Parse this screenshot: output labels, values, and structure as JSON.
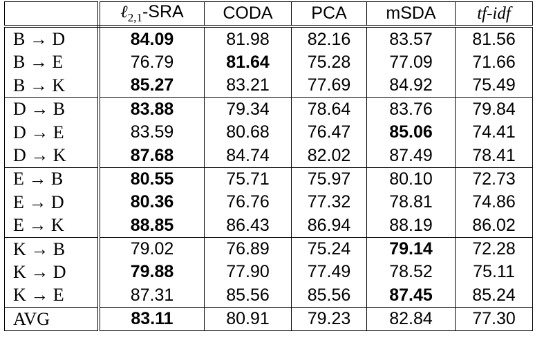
{
  "header": {
    "col1_symbol": "ℓ",
    "col1_sub": "2,1",
    "col1_suffix": "-SRA",
    "col2": "CODA",
    "col3": "PCA",
    "col4": "mSDA",
    "col5": "tf-idf"
  },
  "rows": [
    {
      "label": "B → D",
      "v": [
        "84.09",
        "81.98",
        "82.16",
        "83.57",
        "81.56"
      ],
      "bold": 0
    },
    {
      "label": "B → E",
      "v": [
        "76.79",
        "81.64",
        "75.28",
        "77.09",
        "71.66"
      ],
      "bold": 1
    },
    {
      "label": "B → K",
      "v": [
        "85.27",
        "83.21",
        "77.69",
        "84.92",
        "75.49"
      ],
      "bold": 0
    },
    {
      "label": "D → B",
      "v": [
        "83.88",
        "79.34",
        "78.64",
        "83.76",
        "79.84"
      ],
      "bold": 0
    },
    {
      "label": "D → E",
      "v": [
        "83.59",
        "80.68",
        "76.47",
        "85.06",
        "74.41"
      ],
      "bold": 3
    },
    {
      "label": "D → K",
      "v": [
        "87.68",
        "84.74",
        "82.02",
        "87.49",
        "78.41"
      ],
      "bold": 0
    },
    {
      "label": "E → B",
      "v": [
        "80.55",
        "75.71",
        "75.97",
        "80.10",
        "72.73"
      ],
      "bold": 0
    },
    {
      "label": "E → D",
      "v": [
        "80.36",
        "76.76",
        "77.32",
        "78.81",
        "74.86"
      ],
      "bold": 0
    },
    {
      "label": "E → K",
      "v": [
        "88.85",
        "86.43",
        "86.94",
        "88.19",
        "86.02"
      ],
      "bold": 0
    },
    {
      "label": "K → B",
      "v": [
        "79.02",
        "76.89",
        "75.24",
        "79.14",
        "72.28"
      ],
      "bold": 3
    },
    {
      "label": "K → D",
      "v": [
        "79.88",
        "77.90",
        "77.49",
        "78.52",
        "75.11"
      ],
      "bold": 0
    },
    {
      "label": "K → E",
      "v": [
        "87.31",
        "85.56",
        "85.56",
        "87.45",
        "85.24"
      ],
      "bold": 3
    },
    {
      "label": "AVG",
      "v": [
        "83.11",
        "80.91",
        "79.23",
        "82.84",
        "77.30"
      ],
      "bold": 0
    }
  ]
}
